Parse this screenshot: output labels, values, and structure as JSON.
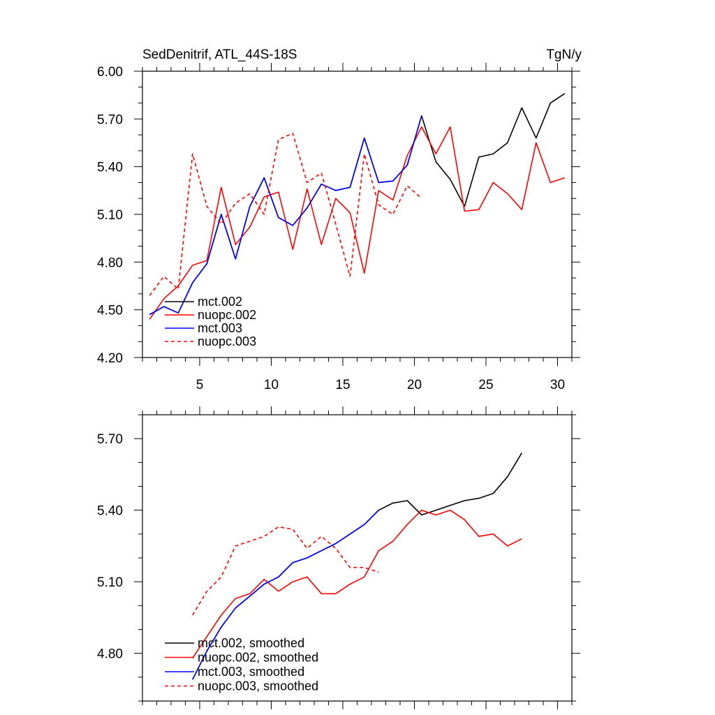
{
  "chart_data": [
    {
      "type": "line",
      "title": "SedDenitrif, ATL_44S-18S",
      "units": "TgN/y",
      "xlim": [
        1,
        31
      ],
      "ylim": [
        4.2,
        6.0
      ],
      "x_ticks": [
        5,
        10,
        15,
        20,
        25,
        30
      ],
      "x_minor": [
        1,
        2,
        3,
        4,
        6,
        7,
        8,
        9,
        11,
        12,
        13,
        14,
        16,
        17,
        18,
        19,
        21,
        22,
        23,
        24,
        26,
        27,
        28,
        29,
        31
      ],
      "y_ticks": [
        4.2,
        4.5,
        4.8,
        5.1,
        5.4,
        5.7,
        6.0
      ],
      "y_tick_labels": [
        "4.20",
        "4.50",
        "4.80",
        "5.10",
        "5.40",
        "5.70",
        "6.00"
      ],
      "y_minor_step": 0.1,
      "legend_position": "bottom-left",
      "series": [
        {
          "name": "mct.002",
          "color": "#000000",
          "dash": "solid",
          "x": [
            1.5,
            2.5,
            3.5,
            4.5,
            5.5,
            6.5,
            7.5,
            8.5,
            9.5,
            10.5,
            11.5,
            12.5,
            13.5,
            14.5,
            15.5,
            16.5,
            17.5,
            18.5,
            19.5,
            20.5,
            21.5,
            22.5,
            23.5,
            24.5,
            25.5,
            26.5,
            27.5,
            28.5,
            29.5,
            30.5
          ],
          "y": [
            4.47,
            4.52,
            4.48,
            4.67,
            4.79,
            5.1,
            4.82,
            5.15,
            5.33,
            5.08,
            5.03,
            5.14,
            5.29,
            5.25,
            5.27,
            5.58,
            5.3,
            5.31,
            5.41,
            5.72,
            5.43,
            5.32,
            5.15,
            5.46,
            5.48,
            5.55,
            5.77,
            5.58,
            5.8,
            5.86
          ]
        },
        {
          "name": "nuopc.002",
          "color": "#ff0000",
          "dash": "solid",
          "x": [
            1.5,
            2.5,
            3.5,
            4.5,
            5.5,
            6.5,
            7.5,
            8.5,
            9.5,
            10.5,
            11.5,
            12.5,
            13.5,
            14.5,
            15.5,
            16.5,
            17.5,
            18.5,
            19.5,
            20.5,
            21.5,
            22.5,
            23.5,
            24.5,
            25.5,
            26.5,
            27.5,
            28.5,
            29.5,
            30.5
          ],
          "y": [
            4.44,
            4.57,
            4.65,
            4.78,
            4.81,
            5.27,
            4.91,
            5.02,
            5.21,
            5.24,
            4.88,
            5.26,
            4.91,
            5.2,
            5.11,
            4.73,
            5.25,
            5.19,
            5.47,
            5.65,
            5.48,
            5.65,
            5.12,
            5.13,
            5.3,
            5.23,
            5.13,
            5.55,
            5.3,
            5.33
          ]
        },
        {
          "name": "mct.003",
          "color": "#0000ff",
          "dash": "solid",
          "x": [
            1.5,
            2.5,
            3.5,
            4.5,
            5.5,
            6.5,
            7.5,
            8.5,
            9.5,
            10.5,
            11.5,
            12.5,
            13.5,
            14.5,
            15.5,
            16.5,
            17.5,
            18.5,
            19.5,
            20.5
          ],
          "y": [
            4.47,
            4.52,
            4.48,
            4.67,
            4.79,
            5.1,
            4.82,
            5.15,
            5.33,
            5.08,
            5.03,
            5.14,
            5.29,
            5.25,
            5.27,
            5.58,
            5.3,
            5.31,
            5.41,
            5.72
          ]
        },
        {
          "name": "nuopc.003",
          "color": "#ff0000",
          "dash": "dashed",
          "x": [
            1.5,
            2.5,
            3.5,
            4.5,
            5.5,
            6.5,
            7.5,
            8.5,
            9.5,
            10.5,
            11.5,
            12.5,
            13.5,
            14.5,
            15.5,
            16.5,
            17.5,
            18.5,
            19.5,
            20.5
          ],
          "y": [
            4.59,
            4.71,
            4.63,
            5.48,
            5.15,
            5.04,
            5.17,
            5.23,
            5.1,
            5.57,
            5.61,
            5.3,
            5.36,
            5.04,
            4.71,
            5.48,
            5.16,
            5.1,
            5.28,
            5.2
          ]
        }
      ]
    },
    {
      "type": "line",
      "xlim": [
        1,
        31
      ],
      "ylim": [
        4.6,
        5.8
      ],
      "x_ticks": [
        5,
        10,
        15,
        20,
        25,
        30
      ],
      "x_minor": [
        1,
        2,
        3,
        4,
        6,
        7,
        8,
        9,
        11,
        12,
        13,
        14,
        16,
        17,
        18,
        19,
        21,
        22,
        23,
        24,
        26,
        27,
        28,
        29,
        31
      ],
      "y_ticks": [
        4.8,
        5.1,
        5.4,
        5.7
      ],
      "y_tick_labels": [
        "4.80",
        "5.10",
        "5.40",
        "5.70"
      ],
      "y_minor_step": 0.1,
      "legend_position": "bottom-left",
      "series": [
        {
          "name": "mct.002, smoothed",
          "color": "#000000",
          "dash": "solid",
          "x": [
            4.5,
            5.5,
            6.5,
            7.5,
            8.5,
            9.5,
            10.5,
            11.5,
            12.5,
            13.5,
            14.5,
            15.5,
            16.5,
            17.5,
            18.5,
            19.5,
            20.5,
            21.5,
            22.5,
            23.5,
            24.5,
            25.5,
            26.5,
            27.5
          ],
          "y": [
            4.69,
            4.81,
            4.91,
            4.99,
            5.04,
            5.09,
            5.12,
            5.18,
            5.2,
            5.23,
            5.26,
            5.3,
            5.34,
            5.4,
            5.43,
            5.44,
            5.38,
            5.4,
            5.42,
            5.44,
            5.45,
            5.47,
            5.54,
            5.64
          ]
        },
        {
          "name": "nuopc.002, smoothed",
          "color": "#ff0000",
          "dash": "solid",
          "x": [
            4.5,
            5.5,
            6.5,
            7.5,
            8.5,
            9.5,
            10.5,
            11.5,
            12.5,
            13.5,
            14.5,
            15.5,
            16.5,
            17.5,
            18.5,
            19.5,
            20.5,
            21.5,
            22.5,
            23.5,
            24.5,
            25.5,
            26.5,
            27.5
          ],
          "y": [
            4.78,
            4.87,
            4.96,
            5.03,
            5.05,
            5.11,
            5.06,
            5.1,
            5.12,
            5.05,
            5.05,
            5.09,
            5.12,
            5.23,
            5.27,
            5.34,
            5.4,
            5.38,
            5.4,
            5.36,
            5.29,
            5.3,
            5.25,
            5.28
          ]
        },
        {
          "name": "mct.003, smoothed",
          "color": "#0000ff",
          "dash": "solid",
          "x": [
            4.5,
            5.5,
            6.5,
            7.5,
            8.5,
            9.5,
            10.5,
            11.5,
            12.5,
            13.5,
            14.5,
            15.5,
            16.5,
            17.5
          ],
          "y": [
            4.69,
            4.81,
            4.91,
            4.99,
            5.04,
            5.09,
            5.12,
            5.18,
            5.2,
            5.23,
            5.26,
            5.3,
            5.34,
            5.4
          ]
        },
        {
          "name": "nuopc.003, smoothed",
          "color": "#ff0000",
          "dash": "dashed",
          "x": [
            4.5,
            5.5,
            6.5,
            7.5,
            8.5,
            9.5,
            10.5,
            11.5,
            12.5,
            13.5,
            14.5,
            15.5,
            16.5,
            17.5
          ],
          "y": [
            4.96,
            5.06,
            5.12,
            5.25,
            5.27,
            5.29,
            5.33,
            5.32,
            5.24,
            5.29,
            5.24,
            5.16,
            5.16,
            5.14
          ]
        }
      ]
    }
  ]
}
